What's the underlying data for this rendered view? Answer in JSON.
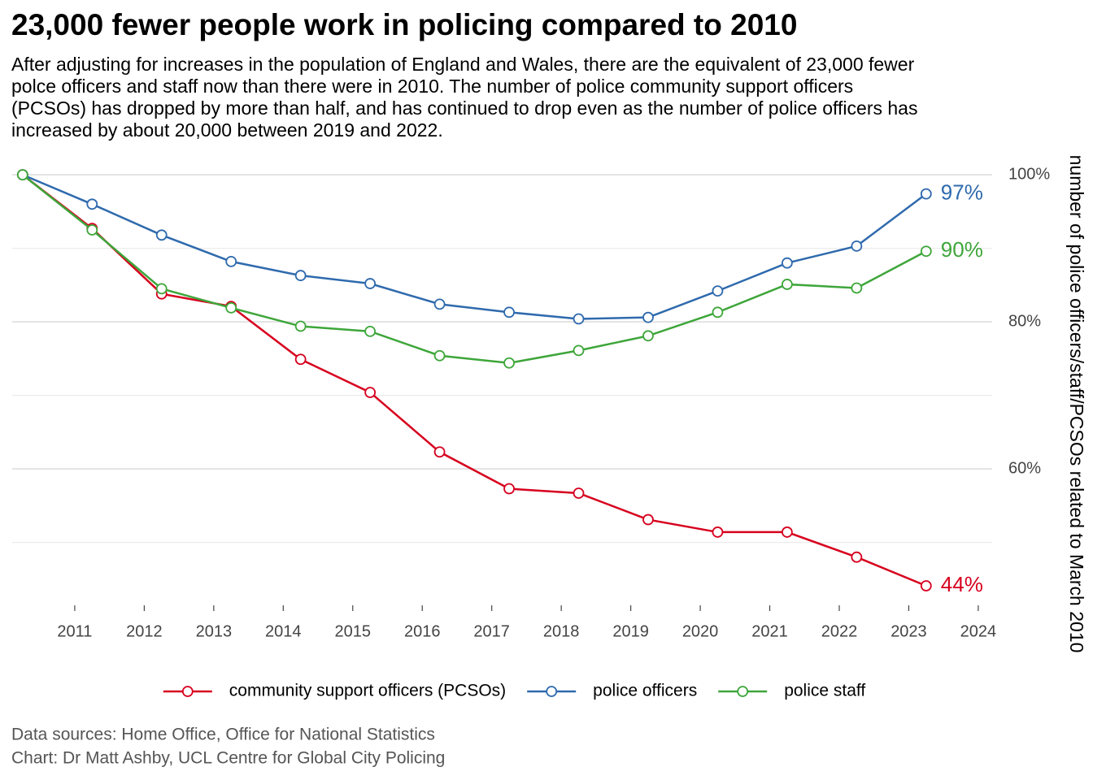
{
  "chart_data": {
    "type": "line",
    "title": "23,000 fewer people work in policing compared to 2010",
    "subtitle": [
      "After adjusting for increases in the population of England and Wales, there are the equivalent of 23,000 fewer",
      "polce officers and staff now than there were in 2010. The number of police community support officers",
      "(PCSOs) has dropped by more than half, and has continued to drop even as the number of police officers has",
      "increased by about 20,000 between 2019 and 2022."
    ],
    "y_label": "number of police officers/staff/PCSOs related to March 2010",
    "caption": [
      "Data sources: Home Office, Office for National Statistics",
      "Chart: Dr Matt Ashby, UCL Centre for Global City Policing"
    ],
    "x": [
      2010.25,
      2011.25,
      2012.25,
      2013.25,
      2014.25,
      2015.25,
      2016.25,
      2017.25,
      2018.25,
      2019.25,
      2020.25,
      2021.25,
      2022.25,
      2023.25
    ],
    "xlim": [
      2010.1,
      2024.2
    ],
    "xticks": [
      2011,
      2012,
      2013,
      2014,
      2015,
      2016,
      2017,
      2018,
      2019,
      2020,
      2021,
      2022,
      2023,
      2024
    ],
    "ylim": [
      42,
      102
    ],
    "yticks": [
      {
        "value": 60,
        "label": "60%"
      },
      {
        "value": 80,
        "label": "80%"
      },
      {
        "value": 100,
        "label": "100%"
      }
    ],
    "y_minor_gridlines": [
      50,
      70,
      90
    ],
    "y_axis_side": "right",
    "grid": true,
    "legend_position": "bottom",
    "series": [
      {
        "name": "community support officers (PCSOs)",
        "color": "#d7001e",
        "values": [
          100,
          92.7,
          83.8,
          82.1,
          74.9,
          70.4,
          62.3,
          57.3,
          56.7,
          53.1,
          51.4,
          51.4,
          48.0,
          44.1
        ],
        "value_labels": [
          null,
          null,
          null,
          null,
          null,
          null,
          null,
          null,
          null,
          null,
          null,
          null,
          null,
          "44%"
        ]
      },
      {
        "name": "police officers",
        "color": "#2f6aad",
        "values": [
          100,
          96.0,
          91.8,
          88.2,
          86.3,
          85.2,
          82.4,
          81.3,
          80.4,
          80.6,
          84.2,
          88.0,
          90.3,
          97.4
        ],
        "value_labels": [
          null,
          null,
          null,
          null,
          null,
          null,
          null,
          null,
          null,
          null,
          null,
          null,
          null,
          "97%"
        ]
      },
      {
        "name": "police staff",
        "color": "#3ea63a",
        "values": [
          100,
          92.5,
          84.5,
          81.9,
          79.4,
          78.7,
          75.4,
          74.4,
          76.1,
          78.1,
          81.3,
          85.1,
          84.6,
          89.6
        ],
        "value_labels": [
          null,
          null,
          null,
          null,
          null,
          null,
          null,
          null,
          null,
          null,
          null,
          null,
          null,
          "90%"
        ]
      }
    ]
  }
}
